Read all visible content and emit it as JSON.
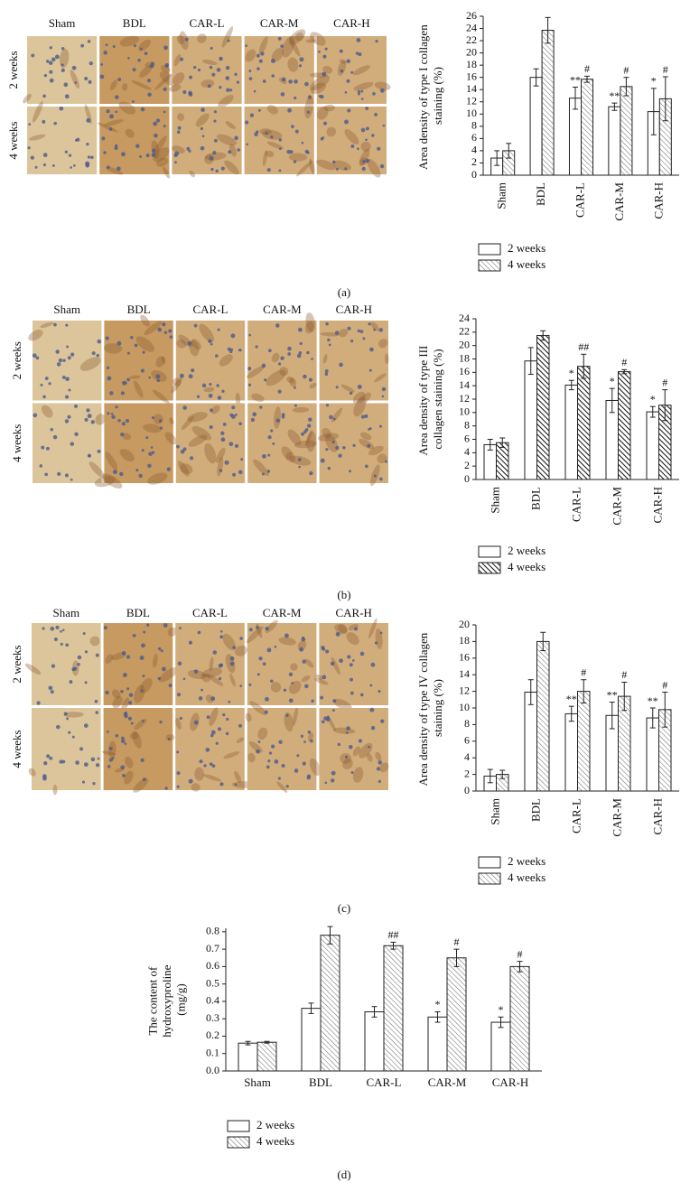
{
  "figure": {
    "panels": [
      {
        "label": "(a)",
        "columns": [
          "Sham",
          "BDL",
          "CAR-L",
          "CAR-M",
          "CAR-H"
        ],
        "rows": [
          "2 weeks",
          "4 weeks"
        ]
      },
      {
        "label": "(b)",
        "columns": [
          "Sham",
          "BDL",
          "CAR-L",
          "CAR-M",
          "CAR-H"
        ],
        "rows": [
          "2 weeks",
          "4 weeks"
        ]
      },
      {
        "label": "(c)",
        "columns": [
          "Sham",
          "BDL",
          "CAR-L",
          "CAR-M",
          "CAR-H"
        ],
        "rows": [
          "2 weeks",
          "4 weeks"
        ]
      },
      {
        "label": "(d)"
      }
    ]
  },
  "chart_data": [
    {
      "type": "bar",
      "ylabel": "Area density of type I collagen staining (%)",
      "categories": [
        "Sham",
        "BDL",
        "CAR-L",
        "CAR-M",
        "CAR-H"
      ],
      "series": [
        {
          "name": "2 weeks",
          "color": "#ffffff",
          "values": [
            2.8,
            16,
            12.6,
            11.2,
            10.4
          ],
          "errors": [
            1.2,
            1.4,
            1.8,
            0.6,
            3.8
          ],
          "annotations": [
            null,
            null,
            "**",
            "**",
            "*"
          ]
        },
        {
          "name": "4 weeks",
          "color": "#ffffff",
          "pattern": "diagonal",
          "values": [
            4.0,
            23.7,
            15.7,
            14.5,
            12.5
          ],
          "errors": [
            1.2,
            2.1,
            0.5,
            1.5,
            3.6
          ],
          "annotations": [
            null,
            null,
            "#",
            "#",
            "#"
          ]
        }
      ],
      "ylim": [
        0,
        26
      ],
      "yticks": [
        0,
        2,
        4,
        6,
        8,
        10,
        12,
        14,
        16,
        18,
        20,
        22,
        24,
        26
      ],
      "legend": "below",
      "rotate_categories": true
    },
    {
      "type": "bar",
      "ylabel": "Area density of type III collagen staining (%)",
      "categories": [
        "Sham",
        "BDL",
        "CAR-L",
        "CAR-M",
        "CAR-H"
      ],
      "series": [
        {
          "name": "2 weeks",
          "color": "#ffffff",
          "values": [
            5.2,
            17.7,
            14.1,
            11.8,
            10.1
          ],
          "errors": [
            0.8,
            2.0,
            0.7,
            1.8,
            0.8
          ],
          "annotations": [
            null,
            null,
            "*",
            "*",
            "*"
          ]
        },
        {
          "name": "4 weeks",
          "color": "#ffffff",
          "pattern": "diagonal-dense",
          "values": [
            5.5,
            21.5,
            16.9,
            16.1,
            11.1
          ],
          "errors": [
            0.7,
            0.7,
            1.8,
            0.3,
            2.3
          ],
          "annotations": [
            null,
            null,
            "##",
            "#",
            "#"
          ]
        }
      ],
      "ylim": [
        0,
        24
      ],
      "yticks": [
        0,
        2,
        4,
        6,
        8,
        10,
        12,
        14,
        16,
        18,
        20,
        22,
        24
      ],
      "legend": "below",
      "rotate_categories": true
    },
    {
      "type": "bar",
      "ylabel": "Area density of type IV collagen staining (%)",
      "categories": [
        "Sham",
        "BDL",
        "CAR-L",
        "CAR-M",
        "CAR-H"
      ],
      "series": [
        {
          "name": "2 weeks",
          "color": "#ffffff",
          "values": [
            1.8,
            11.9,
            9.3,
            9.1,
            8.8
          ],
          "errors": [
            0.8,
            1.5,
            0.9,
            1.6,
            1.2
          ],
          "annotations": [
            null,
            null,
            "**",
            "**",
            "**"
          ]
        },
        {
          "name": "4 weeks",
          "color": "#ffffff",
          "pattern": "diagonal",
          "values": [
            2.0,
            18.0,
            12.0,
            11.4,
            9.8
          ],
          "errors": [
            0.5,
            1.1,
            1.4,
            1.7,
            2.1
          ],
          "annotations": [
            null,
            null,
            "#",
            "#",
            "#"
          ]
        }
      ],
      "ylim": [
        0,
        20
      ],
      "yticks": [
        0,
        2,
        4,
        6,
        8,
        10,
        12,
        14,
        16,
        18,
        20
      ],
      "legend": "below",
      "rotate_categories": true
    },
    {
      "type": "bar",
      "ylabel": "The content of hydroxyproline (mg/g)",
      "categories": [
        "Sham",
        "BDL",
        "CAR-L",
        "CAR-M",
        "CAR-H"
      ],
      "series": [
        {
          "name": "2 weeks",
          "color": "#ffffff",
          "values": [
            0.16,
            0.36,
            0.34,
            0.31,
            0.28
          ],
          "errors": [
            0.01,
            0.03,
            0.03,
            0.03,
            0.03
          ],
          "annotations": [
            null,
            null,
            null,
            "*",
            "*"
          ]
        },
        {
          "name": "4 weeks",
          "color": "#ffffff",
          "pattern": "diagonal",
          "values": [
            0.165,
            0.78,
            0.72,
            0.65,
            0.6
          ],
          "errors": [
            0.005,
            0.05,
            0.02,
            0.05,
            0.03
          ],
          "annotations": [
            null,
            null,
            "##",
            "#",
            "#"
          ]
        }
      ],
      "ylim": [
        0,
        0.82
      ],
      "yticks": [
        {
          "value": 0,
          "label": "0.0"
        },
        0.1,
        0.2,
        0.3,
        0.4,
        0.5,
        0.6,
        0.7,
        0.8
      ],
      "legend": "below",
      "rotate_categories": false
    }
  ]
}
